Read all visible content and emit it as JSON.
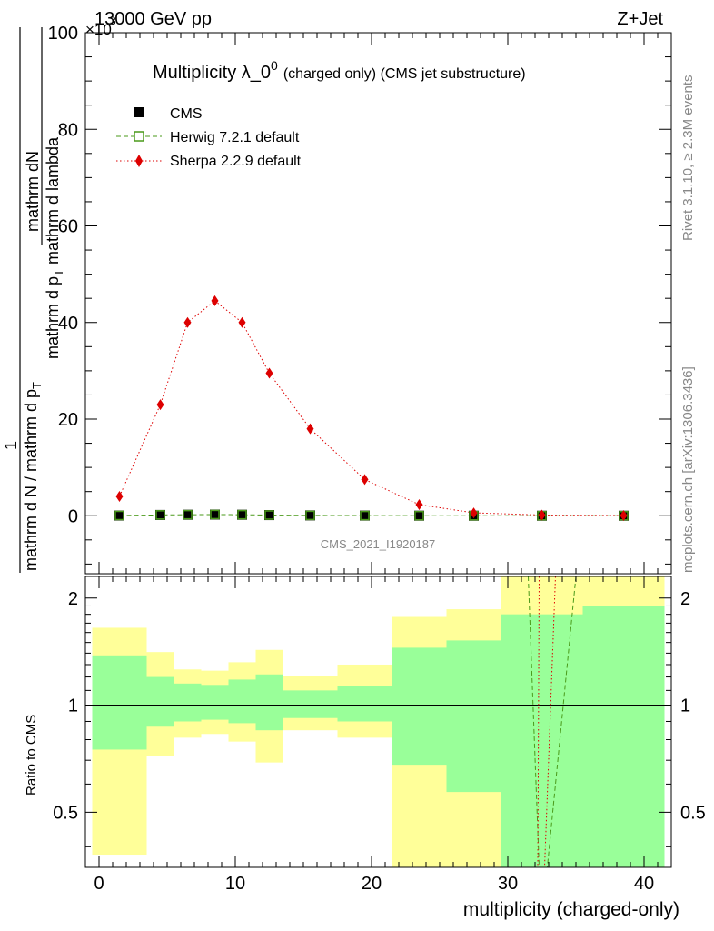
{
  "header": {
    "left": "13000 GeV pp",
    "right": "Z+Jet",
    "exponent": "×10"
  },
  "side_labels": {
    "rivet": "Rivet 3.1.10, ≥ 2.3M events",
    "mcplots": "mcplots.cern.ch [arXiv:1306.3436]"
  },
  "watermark": "CMS_2021_I1920187",
  "chart_data": [
    {
      "type": "line",
      "panel": "main",
      "title": "Multiplicity λ_0",
      "title_sup": "0",
      "subtitle": "(charged only) (CMS jet substructure)",
      "ylabel_numerator_top": "mathrm dN",
      "ylabel_numerator_bottom": "mathrm d p",
      "ylabel_numerator_sub": "T",
      "ylabel_numerator_tail": " mathrm d lambda",
      "ylabel_one": "1",
      "ylabel_denominator": "mathrm d N / mathrm d p",
      "ylabel_denominator_sub": "T",
      "ylim": [
        -12,
        100
      ],
      "yticks": [
        0,
        20,
        40,
        60,
        80,
        100
      ],
      "ytick_labels": [
        "0",
        "20",
        "40",
        "60",
        "80",
        "100"
      ],
      "xlim": [
        -1,
        42
      ],
      "legend": [
        {
          "label": "CMS",
          "marker": "square-filled",
          "color": "#000000"
        },
        {
          "label": "Herwig 7.2.1 default",
          "marker": "square-open",
          "color": "#4a9a1a",
          "linestyle": "dashed"
        },
        {
          "label": "Sherpa 2.2.9 default",
          "marker": "diamond",
          "color": "#dd0000",
          "linestyle": "dotted"
        }
      ],
      "series": [
        {
          "name": "CMS",
          "x": [
            1.5,
            4.5,
            6.5,
            8.5,
            10.5,
            12.5,
            15.5,
            19.5,
            23.5,
            27.5,
            32.5,
            38.5
          ],
          "y": [
            0.04,
            0.16,
            0.2,
            0.24,
            0.2,
            0.13,
            0.07,
            0.03,
            0.01,
            0.002,
            0.0005,
            0.0001
          ]
        },
        {
          "name": "Herwig 7.2.1 default",
          "x": [
            1.5,
            4.5,
            6.5,
            8.5,
            10.5,
            12.5,
            15.5,
            19.5,
            23.5,
            27.5,
            32.5,
            38.5
          ],
          "y": [
            0.05,
            0.17,
            0.21,
            0.25,
            0.21,
            0.14,
            0.07,
            0.03,
            0.01,
            0.002,
            0.0005,
            0.0001
          ]
        },
        {
          "name": "Sherpa 2.2.9 default",
          "x": [
            1.5,
            4.5,
            6.5,
            8.5,
            10.5,
            12.5,
            15.5,
            19.5,
            23.5,
            27.5,
            32.5,
            38.5
          ],
          "y": [
            4.0,
            23.0,
            40.0,
            44.5,
            40.0,
            29.5,
            18.0,
            7.5,
            2.3,
            0.6,
            0.15,
            0.05
          ]
        }
      ]
    },
    {
      "type": "ratio",
      "panel": "ratio",
      "ylabel": "Ratio to CMS",
      "xlabel": "multiplicity (charged-only)",
      "ylim": [
        0.35,
        2.3
      ],
      "yscale": "log",
      "yticks": [
        0.5,
        1,
        2
      ],
      "ytick_labels": [
        "0.5",
        "1",
        "2"
      ],
      "xlim": [
        -1,
        42
      ],
      "xticks": [
        0,
        10,
        20,
        30,
        40
      ],
      "xtick_labels": [
        "0",
        "10",
        "20",
        "30",
        "40"
      ],
      "bins": [
        {
          "x0": -0.5,
          "x1": 3.5,
          "yellow": [
            0.38,
            1.65
          ],
          "green": [
            0.75,
            1.38
          ]
        },
        {
          "x0": 3.5,
          "x1": 5.5,
          "yellow": [
            0.72,
            1.41
          ],
          "green": [
            0.87,
            1.2
          ]
        },
        {
          "x0": 5.5,
          "x1": 7.5,
          "yellow": [
            0.81,
            1.26
          ],
          "green": [
            0.9,
            1.15
          ]
        },
        {
          "x0": 7.5,
          "x1": 9.5,
          "yellow": [
            0.83,
            1.25
          ],
          "green": [
            0.91,
            1.14
          ]
        },
        {
          "x0": 9.5,
          "x1": 11.5,
          "yellow": [
            0.79,
            1.32
          ],
          "green": [
            0.89,
            1.18
          ]
        },
        {
          "x0": 11.5,
          "x1": 13.5,
          "yellow": [
            0.69,
            1.43
          ],
          "green": [
            0.85,
            1.22
          ]
        },
        {
          "x0": 13.5,
          "x1": 17.5,
          "yellow": [
            0.85,
            1.21
          ],
          "green": [
            0.92,
            1.1
          ]
        },
        {
          "x0": 17.5,
          "x1": 21.5,
          "yellow": [
            0.81,
            1.3
          ],
          "green": [
            0.9,
            1.13
          ]
        },
        {
          "x0": 21.5,
          "x1": 25.5,
          "yellow": [
            0.35,
            1.77
          ],
          "green": [
            0.68,
            1.45
          ]
        },
        {
          "x0": 25.5,
          "x1": 29.5,
          "yellow": [
            0.35,
            1.86
          ],
          "green": [
            0.57,
            1.52
          ]
        },
        {
          "x0": 29.5,
          "x1": 35.5,
          "yellow": [
            0.35,
            2.3
          ],
          "green": [
            0.35,
            1.8
          ]
        },
        {
          "x0": 35.5,
          "x1": 41.5,
          "yellow": [
            0.35,
            2.3
          ],
          "green": [
            0.35,
            1.9
          ]
        }
      ],
      "herwig_lines": [
        {
          "x0": 31.5,
          "y0": 2.3,
          "x1": 32.3,
          "y1": 0.35
        },
        {
          "x0": 35.0,
          "y0": 2.3,
          "x1": 32.9,
          "y1": 0.35
        }
      ],
      "sherpa_lines": [
        {
          "x0": 32.3,
          "y0": 2.3,
          "x1": 32.2,
          "y1": 0.35
        },
        {
          "x0": 33.5,
          "y0": 2.3,
          "x1": 32.7,
          "y1": 0.35
        }
      ]
    }
  ]
}
